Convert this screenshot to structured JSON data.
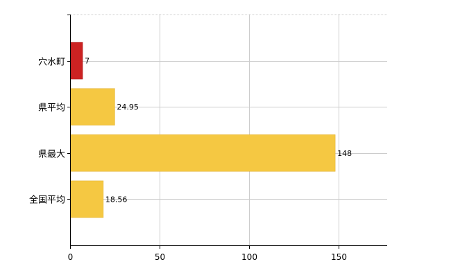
{
  "chart_data": {
    "type": "bar",
    "orientation": "horizontal",
    "categories": [
      "穴水町",
      "県平均",
      "県最大",
      "全国平均"
    ],
    "values": [
      7,
      24.95,
      148,
      18.56
    ],
    "data_labels": [
      "7",
      "24.95",
      "148",
      "18.56"
    ],
    "bar_colors": [
      "#cc2222",
      "#f5c842",
      "#f5c842",
      "#f5c842"
    ],
    "bar_border_colors": [
      "#a31919",
      "#e0b030",
      "#e0b030",
      "#e0b030"
    ],
    "xlim": [
      0,
      177
    ],
    "xticks": [
      0,
      50,
      100,
      150
    ],
    "xtick_labels": [
      "0",
      "50",
      "100",
      "150"
    ],
    "grid": true,
    "grid_color": "#cccccc",
    "title": "",
    "xlabel": "",
    "ylabel": ""
  }
}
